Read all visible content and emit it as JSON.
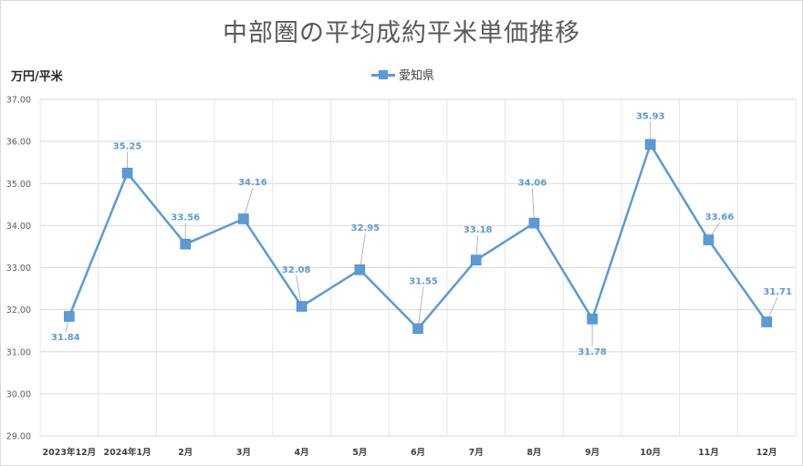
{
  "chart_data": {
    "type": "line",
    "title": "中部圏の平均成約平米単価推移",
    "ylabel": "万円/平米",
    "xlabel": "",
    "categories": [
      "2023年12月",
      "2024年1月",
      "2月",
      "3月",
      "4月",
      "5月",
      "6月",
      "7月",
      "8月",
      "9月",
      "10月",
      "11月",
      "12月"
    ],
    "series": [
      {
        "name": "愛知県",
        "values": [
          31.84,
          35.25,
          33.56,
          34.16,
          32.08,
          32.95,
          31.55,
          33.18,
          34.06,
          31.78,
          35.93,
          33.66,
          31.71
        ],
        "color": "#5b9bd5"
      }
    ],
    "data_labels": [
      "31.84",
      "35.25",
      "33.56",
      "34.16",
      "32.08",
      "32.95",
      "31.55",
      "33.18",
      "34.06",
      "31.78",
      "35.93",
      "33.66",
      "31.71"
    ],
    "ylim": [
      29,
      37
    ],
    "yticks": [
      "29.00",
      "30.00",
      "31.00",
      "32.00",
      "33.00",
      "34.00",
      "35.00",
      "36.00",
      "37.00"
    ],
    "grid": true,
    "legend_position": "top-center"
  }
}
